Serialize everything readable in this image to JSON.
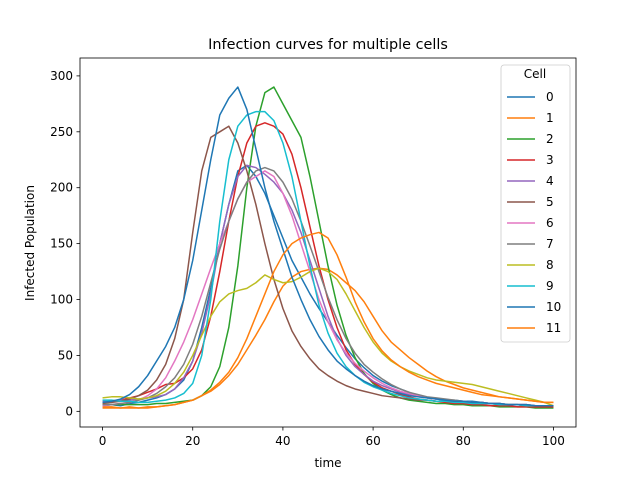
{
  "chart_data": {
    "type": "line",
    "title": "Infection curves for multiple cells",
    "xlabel": "time",
    "ylabel": "Infected Population",
    "xlim": [
      -5,
      105
    ],
    "ylim": [
      -14,
      316
    ],
    "xticks": [
      0,
      20,
      40,
      60,
      80,
      100
    ],
    "yticks": [
      0,
      50,
      100,
      150,
      200,
      250,
      300
    ],
    "grid": false,
    "legend": {
      "title": "Cell",
      "placement": "top-right"
    },
    "x": [
      0,
      2,
      4,
      6,
      8,
      10,
      12,
      14,
      16,
      18,
      20,
      22,
      24,
      26,
      28,
      30,
      32,
      34,
      36,
      38,
      40,
      42,
      44,
      46,
      48,
      50,
      52,
      54,
      56,
      58,
      60,
      62,
      64,
      66,
      68,
      70,
      72,
      74,
      76,
      78,
      80,
      82,
      84,
      86,
      88,
      90,
      92,
      94,
      96,
      98,
      100
    ],
    "series": [
      {
        "name": "0",
        "color": "#1f77b4",
        "values": [
          5,
          6,
          5,
          7,
          8,
          10,
          12,
          15,
          20,
          28,
          45,
          75,
          110,
          150,
          185,
          215,
          220,
          210,
          195,
          175,
          155,
          135,
          120,
          105,
          92,
          80,
          68,
          57,
          47,
          39,
          32,
          27,
          23,
          20,
          17,
          14,
          12,
          11,
          10,
          10,
          9,
          9,
          8,
          7,
          7,
          6,
          6,
          5,
          5,
          5,
          4
        ]
      },
      {
        "name": "1",
        "color": "#ff7f0e",
        "values": [
          4,
          4,
          3,
          4,
          3,
          3,
          4,
          5,
          6,
          8,
          10,
          14,
          18,
          24,
          32,
          42,
          55,
          68,
          82,
          98,
          112,
          120,
          125,
          127,
          128,
          127,
          122,
          115,
          108,
          98,
          85,
          72,
          62,
          55,
          48,
          42,
          36,
          31,
          27,
          24,
          21,
          19,
          17,
          15,
          13,
          12,
          11,
          10,
          9,
          8,
          8
        ]
      },
      {
        "name": "2",
        "color": "#2ca02c",
        "values": [
          6,
          6,
          6,
          6,
          6,
          6,
          7,
          7,
          8,
          9,
          10,
          14,
          22,
          40,
          75,
          130,
          200,
          255,
          285,
          290,
          275,
          260,
          245,
          210,
          170,
          130,
          95,
          68,
          48,
          34,
          25,
          19,
          15,
          12,
          10,
          9,
          8,
          7,
          7,
          6,
          6,
          5,
          5,
          5,
          4,
          4,
          4,
          4,
          3,
          3,
          3
        ]
      },
      {
        "name": "3",
        "color": "#d62728",
        "values": [
          8,
          9,
          10,
          12,
          14,
          17,
          20,
          24,
          25,
          30,
          38,
          55,
          85,
          125,
          170,
          210,
          240,
          255,
          258,
          255,
          248,
          230,
          200,
          165,
          130,
          100,
          75,
          55,
          42,
          33,
          26,
          21,
          18,
          15,
          13,
          11,
          10,
          9,
          8,
          7,
          7,
          6,
          6,
          5,
          5,
          5,
          4,
          4,
          4,
          4,
          4
        ]
      },
      {
        "name": "4",
        "color": "#9467bd",
        "values": [
          9,
          9,
          10,
          10,
          11,
          12,
          13,
          15,
          20,
          30,
          45,
          70,
          105,
          150,
          185,
          210,
          220,
          218,
          212,
          205,
          195,
          180,
          160,
          135,
          110,
          85,
          65,
          50,
          40,
          33,
          27,
          23,
          20,
          17,
          15,
          13,
          12,
          11,
          10,
          9,
          9,
          8,
          8,
          7,
          7,
          6,
          6,
          6,
          5,
          5,
          5
        ]
      },
      {
        "name": "5",
        "color": "#8c564b",
        "values": [
          7,
          8,
          9,
          11,
          14,
          19,
          28,
          42,
          65,
          100,
          160,
          215,
          245,
          250,
          255,
          240,
          215,
          185,
          150,
          118,
          92,
          72,
          58,
          47,
          38,
          32,
          27,
          23,
          20,
          18,
          16,
          14,
          13,
          12,
          11,
          10,
          10,
          9,
          9,
          8,
          8,
          7,
          7,
          7,
          6,
          6,
          6,
          5,
          5,
          5,
          5
        ]
      },
      {
        "name": "6",
        "color": "#e377c2",
        "values": [
          5,
          6,
          7,
          8,
          10,
          14,
          20,
          30,
          45,
          62,
          82,
          105,
          128,
          150,
          170,
          190,
          205,
          210,
          215,
          210,
          195,
          175,
          150,
          125,
          100,
          80,
          64,
          52,
          43,
          36,
          30,
          25,
          21,
          18,
          16,
          14,
          12,
          11,
          10,
          9,
          9,
          8,
          8,
          7,
          7,
          6,
          6,
          6,
          5,
          5,
          5
        ]
      },
      {
        "name": "7",
        "color": "#7f7f7f",
        "values": [
          6,
          6,
          7,
          8,
          10,
          12,
          16,
          22,
          30,
          42,
          60,
          85,
          115,
          145,
          170,
          190,
          205,
          215,
          218,
          215,
          205,
          190,
          170,
          148,
          125,
          102,
          82,
          65,
          52,
          42,
          35,
          29,
          24,
          20,
          17,
          15,
          13,
          12,
          11,
          10,
          9,
          8,
          8,
          7,
          7,
          6,
          6,
          6,
          5,
          5,
          5
        ]
      },
      {
        "name": "8",
        "color": "#bcbd22",
        "values": [
          12,
          13,
          13,
          12,
          11,
          12,
          14,
          18,
          25,
          35,
          50,
          68,
          85,
          98,
          105,
          108,
          110,
          115,
          122,
          118,
          115,
          116,
          120,
          125,
          128,
          125,
          118,
          105,
          90,
          75,
          62,
          52,
          45,
          40,
          36,
          33,
          30,
          28,
          27,
          26,
          25,
          24,
          22,
          20,
          18,
          16,
          14,
          12,
          10,
          8,
          5
        ]
      },
      {
        "name": "9",
        "color": "#17becf",
        "values": [
          10,
          10,
          9,
          9,
          8,
          8,
          9,
          10,
          12,
          16,
          25,
          50,
          100,
          170,
          225,
          255,
          265,
          268,
          268,
          260,
          240,
          210,
          170,
          130,
          95,
          70,
          52,
          40,
          32,
          26,
          22,
          19,
          16,
          14,
          12,
          11,
          10,
          9,
          9,
          8,
          8,
          7,
          7,
          7,
          6,
          6,
          6,
          5,
          5,
          5,
          5
        ]
      },
      {
        "name": "10",
        "color": "#1f77b4",
        "values": [
          8,
          9,
          11,
          15,
          22,
          32,
          45,
          58,
          75,
          100,
          135,
          180,
          225,
          265,
          280,
          290,
          270,
          235,
          200,
          170,
          145,
          120,
          100,
          82,
          67,
          55,
          45,
          38,
          32,
          27,
          23,
          20,
          18,
          16,
          14,
          13,
          12,
          11,
          10,
          9,
          9,
          8,
          8,
          7,
          7,
          6,
          6,
          6,
          5,
          5,
          5
        ]
      },
      {
        "name": "11",
        "color": "#ff7f0e",
        "values": [
          3,
          3,
          3,
          3,
          3,
          4,
          4,
          5,
          6,
          8,
          10,
          14,
          19,
          26,
          35,
          48,
          65,
          85,
          105,
          125,
          140,
          150,
          155,
          158,
          160,
          155,
          140,
          120,
          98,
          80,
          65,
          54,
          46,
          40,
          35,
          31,
          28,
          25,
          23,
          21,
          19,
          17,
          15,
          14,
          13,
          12,
          11,
          10,
          9,
          8,
          8
        ]
      }
    ]
  }
}
